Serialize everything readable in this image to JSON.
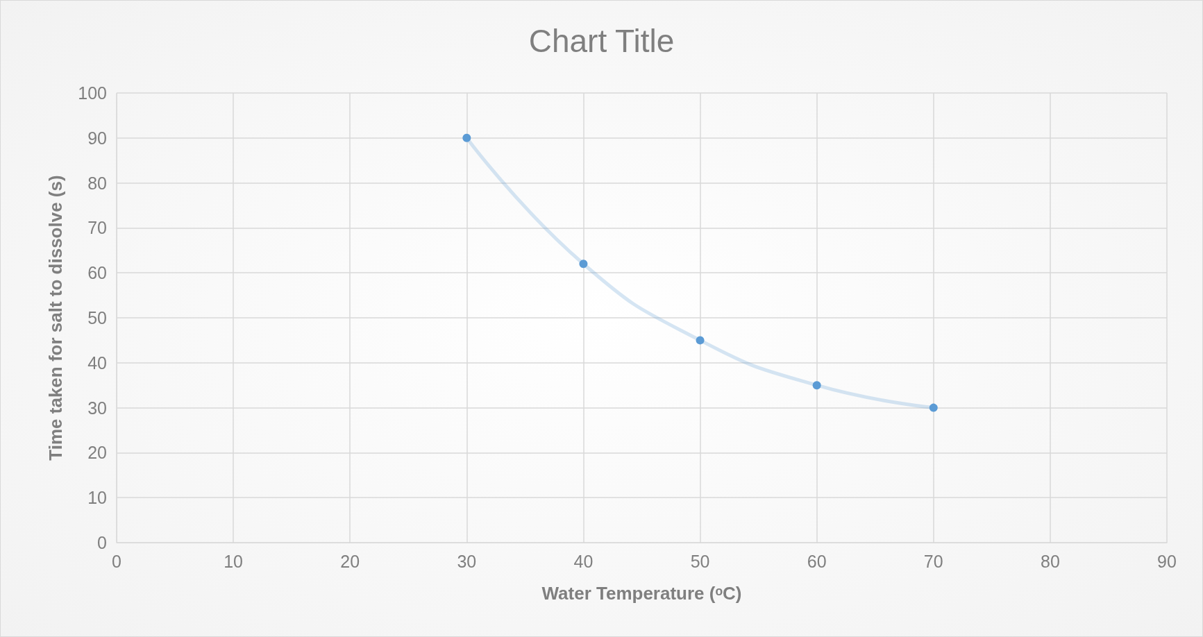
{
  "chart_data": {
    "type": "line",
    "title": "Chart Title",
    "xlabel": "Water Temperature (ᵒC)",
    "ylabel": "Time taken for salt to dissolve (s)",
    "x": [
      30,
      40,
      50,
      60,
      70
    ],
    "series": [
      {
        "color": "#5b9bd5",
        "values": [
          90,
          62,
          45,
          35,
          30
        ]
      }
    ],
    "xlim": [
      0,
      90
    ],
    "xticks": [
      0,
      10,
      20,
      30,
      40,
      50,
      60,
      70,
      80,
      90
    ],
    "ylim": [
      0,
      100
    ],
    "yticks": [
      0,
      10,
      20,
      30,
      40,
      50,
      60,
      70,
      80,
      90,
      100
    ],
    "grid": true,
    "marker": "circle",
    "line_style": "solid"
  }
}
